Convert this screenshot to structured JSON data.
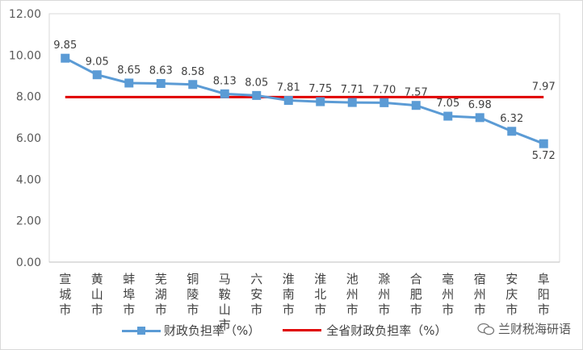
{
  "chart_data": {
    "type": "line",
    "categories": [
      "宣城市",
      "黄山市",
      "蚌埠市",
      "芜湖市",
      "铜陵市",
      "马鞍山市",
      "六安市",
      "淮南市",
      "淮北市",
      "池州市",
      "滁州市",
      "合肥市",
      "亳州市",
      "宿州市",
      "安庆市",
      "阜阳市"
    ],
    "series": [
      {
        "name": "财政负担率（%）",
        "color": "#5b9bd5",
        "values": [
          9.85,
          9.05,
          8.65,
          8.63,
          8.58,
          8.13,
          8.05,
          7.81,
          7.75,
          7.71,
          7.7,
          7.57,
          7.05,
          6.98,
          6.32,
          5.72
        ],
        "labels": [
          "9.85",
          "9.05",
          "8.65",
          "8.63",
          "8.58",
          "8.13",
          "8.05",
          "7.81",
          "7.75",
          "7.71",
          "7.70",
          "7.57",
          "7.05",
          "6.98",
          "6.32",
          "5.72"
        ]
      },
      {
        "name": "全省财政负担率（%）",
        "color": "#e00000",
        "values": [
          7.97,
          7.97,
          7.97,
          7.97,
          7.97,
          7.97,
          7.97,
          7.97,
          7.97,
          7.97,
          7.97,
          7.97,
          7.97,
          7.97,
          7.97,
          7.97
        ],
        "end_label": "7.97"
      }
    ],
    "ylim": [
      0,
      12
    ],
    "yticks": [
      "0.00",
      "2.00",
      "4.00",
      "6.00",
      "8.00",
      "10.00",
      "12.00"
    ],
    "ytick_values": [
      0,
      2,
      4,
      6,
      8,
      10,
      12
    ],
    "legend_position": "bottom"
  },
  "watermark": {
    "text": "兰财税海研语"
  }
}
